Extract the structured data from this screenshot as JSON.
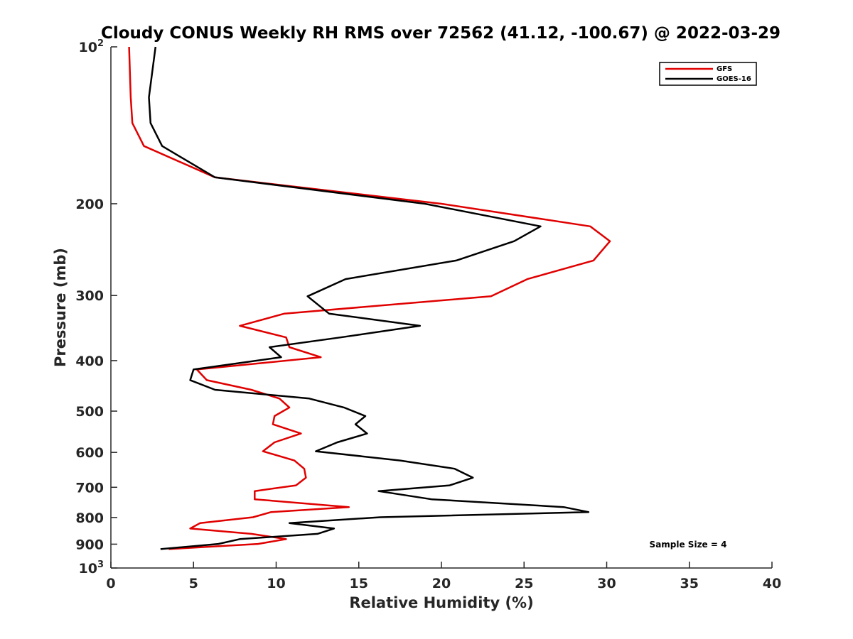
{
  "chart_data": {
    "type": "line",
    "title": "Cloudy CONUS Weekly RH RMS over 72562 (41.12, -100.67) @ 2022-03-29",
    "xlabel": "Relative Humidity (%)",
    "ylabel": "Pressure (mb)",
    "xlim": [
      0,
      40
    ],
    "ylim": [
      100,
      1000
    ],
    "yscale": "log",
    "y_reversed": true,
    "grid": false,
    "legend_position": "top-right",
    "x_ticks": [
      "0",
      "5",
      "10",
      "15",
      "20",
      "25",
      "30",
      "35",
      "40"
    ],
    "y_ticks": [
      {
        "value": 100,
        "base": "10",
        "exp": "2"
      },
      {
        "value": 200,
        "label": "200"
      },
      {
        "value": 300,
        "label": "300"
      },
      {
        "value": 400,
        "label": "400"
      },
      {
        "value": 500,
        "label": "500"
      },
      {
        "value": 600,
        "label": "600"
      },
      {
        "value": 700,
        "label": "700"
      },
      {
        "value": 800,
        "label": "800"
      },
      {
        "value": 900,
        "label": "900"
      },
      {
        "value": 1000,
        "base": "10",
        "exp": "3"
      }
    ],
    "annotation": "Sample Size = 4",
    "series": [
      {
        "name": "GFS",
        "color": "#e00000",
        "points": [
          [
            1.1,
            100
          ],
          [
            1.2,
            125
          ],
          [
            1.3,
            140
          ],
          [
            2.0,
            155
          ],
          [
            6.3,
            178
          ],
          [
            20.0,
            200
          ],
          [
            29.0,
            221
          ],
          [
            30.2,
            236
          ],
          [
            29.2,
            257
          ],
          [
            25.2,
            279
          ],
          [
            23.0,
            301
          ],
          [
            10.5,
            325
          ],
          [
            7.8,
            343
          ],
          [
            10.6,
            361
          ],
          [
            10.8,
            377
          ],
          [
            12.7,
            394
          ],
          [
            5.2,
            416
          ],
          [
            5.8,
            436
          ],
          [
            8.5,
            455
          ],
          [
            10.2,
            473
          ],
          [
            10.8,
            492
          ],
          [
            9.9,
            511
          ],
          [
            9.8,
            530
          ],
          [
            11.5,
            552
          ],
          [
            9.9,
            574
          ],
          [
            9.2,
            597
          ],
          [
            11.1,
            622
          ],
          [
            11.7,
            645
          ],
          [
            11.8,
            671
          ],
          [
            11.2,
            694
          ],
          [
            8.7,
            712
          ],
          [
            8.7,
            738
          ],
          [
            14.4,
            764
          ],
          [
            9.7,
            781
          ],
          [
            8.6,
            799
          ],
          [
            5.4,
            820
          ],
          [
            4.8,
            840
          ],
          [
            8.5,
            860
          ],
          [
            10.6,
            880
          ],
          [
            8.9,
            899
          ],
          [
            3.5,
            920
          ]
        ]
      },
      {
        "name": "GOES-16",
        "color": "#000000",
        "points": [
          [
            2.7,
            100
          ],
          [
            2.3,
            125
          ],
          [
            2.4,
            140
          ],
          [
            3.1,
            155
          ],
          [
            6.3,
            178
          ],
          [
            19.0,
            200
          ],
          [
            26.0,
            221
          ],
          [
            24.4,
            236
          ],
          [
            20.9,
            257
          ],
          [
            14.2,
            279
          ],
          [
            11.9,
            301
          ],
          [
            13.2,
            325
          ],
          [
            18.7,
            343
          ],
          [
            13.9,
            361
          ],
          [
            9.6,
            377
          ],
          [
            10.3,
            394
          ],
          [
            5.0,
            416
          ],
          [
            4.8,
            436
          ],
          [
            6.3,
            455
          ],
          [
            12.0,
            473
          ],
          [
            14.1,
            492
          ],
          [
            15.4,
            511
          ],
          [
            14.8,
            530
          ],
          [
            15.5,
            552
          ],
          [
            13.7,
            574
          ],
          [
            12.4,
            597
          ],
          [
            17.5,
            622
          ],
          [
            20.8,
            645
          ],
          [
            21.9,
            671
          ],
          [
            20.5,
            694
          ],
          [
            16.2,
            712
          ],
          [
            19.4,
            738
          ],
          [
            27.4,
            764
          ],
          [
            28.9,
            781
          ],
          [
            16.3,
            799
          ],
          [
            10.8,
            820
          ],
          [
            13.5,
            840
          ],
          [
            12.5,
            860
          ],
          [
            7.8,
            880
          ],
          [
            6.5,
            899
          ],
          [
            3.0,
            920
          ]
        ]
      }
    ]
  }
}
